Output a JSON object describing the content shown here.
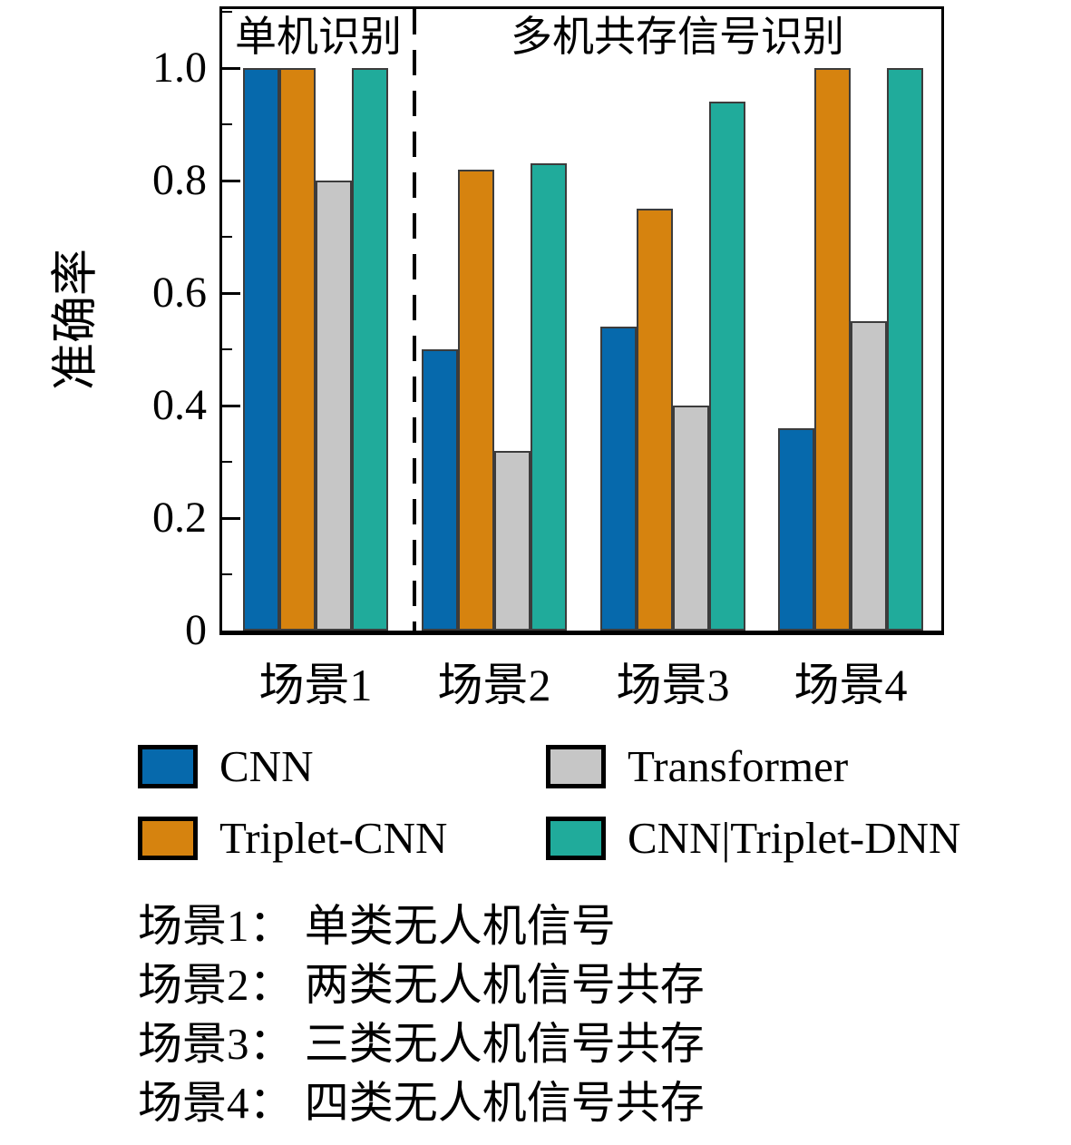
{
  "chart_data": {
    "type": "bar",
    "title": "",
    "xlabel": "",
    "ylabel": "准确率",
    "categories": [
      "场景1",
      "场景2",
      "场景3",
      "场景4"
    ],
    "series": [
      {
        "name": "CNN",
        "color": "#0669AC",
        "values": [
          1.0,
          0.5,
          0.54,
          0.36
        ]
      },
      {
        "name": "Triplet-CNN",
        "color": "#D6830F",
        "values": [
          1.0,
          0.82,
          0.75,
          1.0
        ]
      },
      {
        "name": "Transformer",
        "color": "#C6C6C6",
        "values": [
          0.8,
          0.32,
          0.4,
          0.55
        ]
      },
      {
        "name": "CNN|Triplet-DNN",
        "color": "#20AB9B",
        "values": [
          1.0,
          0.83,
          0.94,
          1.0
        ]
      }
    ],
    "ylim": [
      0,
      1.105
    ],
    "yticks_major": [
      0.2,
      0.4,
      0.6,
      0.8,
      1.0
    ],
    "yticks_minor": [
      0.1,
      0.3,
      0.5,
      0.7,
      0.9,
      1.1
    ],
    "ytick_labels": [
      "0",
      "0.2",
      "0.4",
      "0.6",
      "0.8",
      "1.0"
    ],
    "ytick_values": [
      0,
      0.2,
      0.4,
      0.6,
      0.8,
      1.0
    ],
    "grid": false,
    "bar_edge_color": "#3c3c3c",
    "divider": {
      "style": "dashed",
      "after_category": "场景1"
    },
    "annotations": [
      {
        "text": "单机识别",
        "region": "left-of-divider"
      },
      {
        "text": "多机共存信号识别",
        "region": "right-of-divider"
      }
    ],
    "legend_position": "below"
  },
  "legend": {
    "items": [
      {
        "label": "CNN",
        "color": "#0669AC"
      },
      {
        "label": "Transformer",
        "color": "#C6C6C6"
      },
      {
        "label": "Triplet-CNN",
        "color": "#D6830F"
      },
      {
        "label": "CNN|Triplet-DNN",
        "color": "#20AB9B"
      }
    ]
  },
  "footnotes": {
    "lines": [
      "场景1： 单类无人机信号",
      "场景2： 两类无人机信号共存",
      "场景3： 三类无人机信号共存",
      "场景4： 四类无人机信号共存"
    ]
  }
}
